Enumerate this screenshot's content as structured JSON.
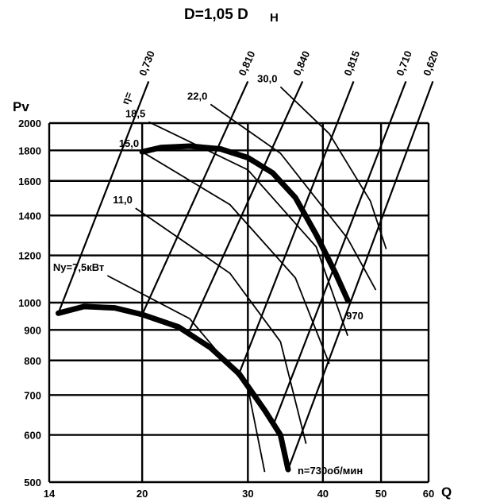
{
  "chart_data": {
    "type": "line",
    "title": "D=1,05 D",
    "title_sub": "Н",
    "ylabel": "Pv",
    "xlabel": "Q",
    "x_scale": "log",
    "y_scale": "log",
    "xlim": [
      14,
      60
    ],
    "ylim": [
      500,
      2000
    ],
    "x_ticks": [
      14,
      20,
      30,
      40,
      50,
      60
    ],
    "y_ticks": [
      500,
      600,
      700,
      800,
      900,
      1000,
      1200,
      1400,
      1600,
      1800,
      2000
    ],
    "grid": true,
    "series": [
      {
        "name": "970",
        "points": [
          [
            20,
            1790
          ],
          [
            21.5,
            1820
          ],
          [
            24,
            1830
          ],
          [
            27,
            1810
          ],
          [
            30,
            1750
          ],
          [
            33,
            1650
          ],
          [
            36,
            1500
          ],
          [
            39,
            1300
          ],
          [
            42,
            1120
          ],
          [
            44,
            1010
          ]
        ]
      },
      {
        "name": "n=730об/мин",
        "points": [
          [
            14.5,
            960
          ],
          [
            16,
            985
          ],
          [
            18,
            980
          ],
          [
            20,
            955
          ],
          [
            23,
            910
          ],
          [
            26,
            840
          ],
          [
            29,
            760
          ],
          [
            32,
            660
          ],
          [
            34,
            600
          ],
          [
            35,
            525
          ]
        ]
      }
    ],
    "efficiency_lines": [
      {
        "label": "0,730",
        "from": [
          14.5,
          960
        ],
        "to": [
          20.5,
          2350
        ]
      },
      {
        "label": "0,810",
        "from": [
          20,
          955
        ],
        "to": [
          30,
          2350
        ]
      },
      {
        "label": "0,840",
        "from": [
          24,
          900
        ],
        "to": [
          37,
          2350
        ]
      },
      {
        "label": "0,815",
        "from": [
          29,
          760
        ],
        "to": [
          45,
          2350
        ]
      },
      {
        "label": "0,710",
        "from": [
          33,
          620
        ],
        "to": [
          55,
          2350
        ]
      },
      {
        "label": "0,620",
        "from": [
          35,
          525
        ],
        "to": [
          61,
          2350
        ]
      }
    ],
    "power_lines": [
      {
        "label": "Ny=7,5кВт",
        "points": [
          [
            17.5,
            1110
          ],
          [
            24,
            940
          ],
          [
            30,
            720
          ],
          [
            32,
            520
          ]
        ]
      },
      {
        "label": "11,0",
        "points": [
          [
            19.5,
            1440
          ],
          [
            28,
            1120
          ],
          [
            34,
            860
          ],
          [
            37.5,
            580
          ]
        ]
      },
      {
        "label": "15,0",
        "points": [
          [
            20,
            1790
          ],
          [
            28,
            1460
          ],
          [
            36,
            1100
          ],
          [
            41,
            790
          ]
        ]
      },
      {
        "label": "18,5",
        "points": [
          [
            20.5,
            2010
          ],
          [
            30,
            1670
          ],
          [
            39,
            1240
          ],
          [
            44,
            880
          ]
        ]
      },
      {
        "label": "22,0",
        "points": [
          [
            26,
            2150
          ],
          [
            34,
            1780
          ],
          [
            44,
            1280
          ],
          [
            49,
            1050
          ]
        ]
      },
      {
        "label": "30,0",
        "points": [
          [
            34,
            2300
          ],
          [
            41,
            1920
          ],
          [
            48,
            1480
          ],
          [
            51,
            1230
          ]
        ]
      }
    ],
    "eta_symbol": "η=",
    "legend_placement": "none"
  }
}
